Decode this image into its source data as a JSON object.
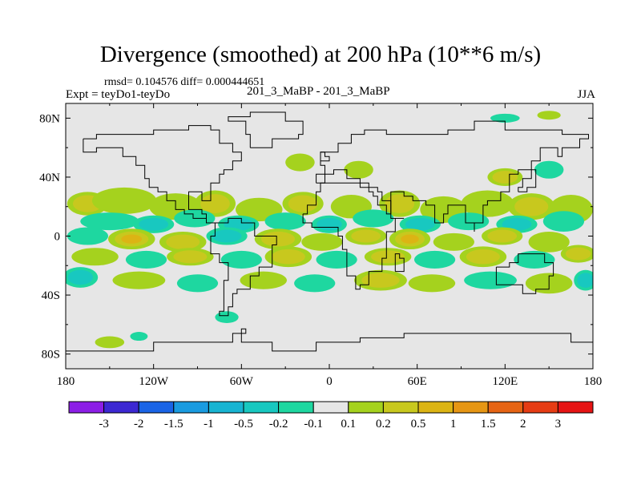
{
  "chart_data": {
    "type": "contour-map",
    "title": "Divergence (smoothed) at 200 hPa (10**6 m/s)",
    "subtitle_left_top": "rmsd= 0.104576 diff= 0.000444651",
    "subtitle_left": "Expt = teyDo1-teyDo",
    "subtitle_center": "201_3_MaBP - 201_3_MaBP",
    "subtitle_right": "JJA",
    "x_axis": {
      "range": [
        -180,
        180
      ],
      "ticks": [
        {
          "value": -180,
          "label": "180"
        },
        {
          "value": -120,
          "label": "120W"
        },
        {
          "value": -60,
          "label": "60W"
        },
        {
          "value": 0,
          "label": "0"
        },
        {
          "value": 60,
          "label": "60E"
        },
        {
          "value": 120,
          "label": "120E"
        },
        {
          "value": 180,
          "label": "180"
        }
      ]
    },
    "y_axis": {
      "range": [
        -90,
        90
      ],
      "ticks": [
        {
          "value": 80,
          "label": "80N"
        },
        {
          "value": 40,
          "label": "40N"
        },
        {
          "value": 0,
          "label": "0"
        },
        {
          "value": -40,
          "label": "40S"
        },
        {
          "value": -80,
          "label": "80S"
        }
      ]
    },
    "colorbar": {
      "colors": [
        "#8c1ee6",
        "#3c28d2",
        "#1a64e6",
        "#1a9be0",
        "#18b4d2",
        "#18c8c0",
        "#1ed7a0",
        "#e6e6e6",
        "#a5d21e",
        "#c8c81e",
        "#dcb414",
        "#e69614",
        "#e66414",
        "#e63c14",
        "#e61414"
      ],
      "labels": [
        "-3",
        "-2",
        "-1.5",
        "-1",
        "-0.5",
        "-0.2",
        "-0.1",
        "0.1",
        "0.2",
        "0.5",
        "1",
        "1.5",
        "2",
        "3"
      ]
    },
    "regions": [
      {
        "lon": -165,
        "lat": 22,
        "w": 14,
        "h": 8,
        "level": 2
      },
      {
        "lon": -140,
        "lat": 24,
        "w": 22,
        "h": 9,
        "level": 1
      },
      {
        "lon": -105,
        "lat": 20,
        "w": 18,
        "h": 9,
        "level": 1
      },
      {
        "lon": -78,
        "lat": 22,
        "w": 14,
        "h": 9,
        "level": 2
      },
      {
        "lon": -48,
        "lat": 18,
        "w": 16,
        "h": 8,
        "level": 1
      },
      {
        "lon": -18,
        "lat": 22,
        "w": 14,
        "h": 8,
        "level": 2
      },
      {
        "lon": 15,
        "lat": 20,
        "w": 14,
        "h": 8,
        "level": 1
      },
      {
        "lon": 48,
        "lat": 22,
        "w": 14,
        "h": 9,
        "level": 2
      },
      {
        "lon": 78,
        "lat": 18,
        "w": 16,
        "h": 9,
        "level": 1
      },
      {
        "lon": 108,
        "lat": 22,
        "w": 18,
        "h": 9,
        "level": 1
      },
      {
        "lon": 138,
        "lat": 20,
        "w": 16,
        "h": 9,
        "level": 2
      },
      {
        "lon": 165,
        "lat": 18,
        "w": 15,
        "h": 10,
        "level": 1
      },
      {
        "lon": -150,
        "lat": 10,
        "w": 20,
        "h": 6,
        "level": -1
      },
      {
        "lon": -120,
        "lat": 8,
        "w": 14,
        "h": 6,
        "level": -2
      },
      {
        "lon": -92,
        "lat": 12,
        "w": 14,
        "h": 6,
        "level": -1
      },
      {
        "lon": -62,
        "lat": 8,
        "w": 14,
        "h": 6,
        "level": -2
      },
      {
        "lon": -30,
        "lat": 10,
        "w": 14,
        "h": 6,
        "level": -1
      },
      {
        "lon": 0,
        "lat": 8,
        "w": 12,
        "h": 6,
        "level": -2
      },
      {
        "lon": 30,
        "lat": 12,
        "w": 14,
        "h": 6,
        "level": -1
      },
      {
        "lon": 62,
        "lat": 8,
        "w": 14,
        "h": 6,
        "level": -2
      },
      {
        "lon": 95,
        "lat": 10,
        "w": 14,
        "h": 6,
        "level": -1
      },
      {
        "lon": 128,
        "lat": 8,
        "w": 14,
        "h": 6,
        "level": -2
      },
      {
        "lon": 160,
        "lat": 10,
        "w": 14,
        "h": 7,
        "level": -1
      },
      {
        "lon": -165,
        "lat": 0,
        "w": 14,
        "h": 6,
        "level": -1
      },
      {
        "lon": -135,
        "lat": -2,
        "w": 16,
        "h": 7,
        "level": 3
      },
      {
        "lon": -100,
        "lat": -4,
        "w": 16,
        "h": 7,
        "level": 2
      },
      {
        "lon": -70,
        "lat": 0,
        "w": 14,
        "h": 6,
        "level": -2
      },
      {
        "lon": -35,
        "lat": -2,
        "w": 16,
        "h": 7,
        "level": 2
      },
      {
        "lon": -5,
        "lat": -4,
        "w": 14,
        "h": 6,
        "level": 1
      },
      {
        "lon": 25,
        "lat": 0,
        "w": 14,
        "h": 6,
        "level": 2
      },
      {
        "lon": 55,
        "lat": -2,
        "w": 14,
        "h": 7,
        "level": 3
      },
      {
        "lon": 85,
        "lat": -4,
        "w": 14,
        "h": 6,
        "level": 1
      },
      {
        "lon": 118,
        "lat": 0,
        "w": 14,
        "h": 6,
        "level": 2
      },
      {
        "lon": 150,
        "lat": -4,
        "w": 14,
        "h": 7,
        "level": 1
      },
      {
        "lon": -160,
        "lat": -14,
        "w": 16,
        "h": 6,
        "level": 1
      },
      {
        "lon": -125,
        "lat": -16,
        "w": 14,
        "h": 6,
        "level": -1
      },
      {
        "lon": -95,
        "lat": -14,
        "w": 16,
        "h": 6,
        "level": 2
      },
      {
        "lon": -60,
        "lat": -16,
        "w": 14,
        "h": 6,
        "level": -1
      },
      {
        "lon": -28,
        "lat": -14,
        "w": 16,
        "h": 7,
        "level": 2
      },
      {
        "lon": 5,
        "lat": -16,
        "w": 14,
        "h": 6,
        "level": -1
      },
      {
        "lon": 40,
        "lat": -14,
        "w": 16,
        "h": 6,
        "level": 2
      },
      {
        "lon": 72,
        "lat": -16,
        "w": 14,
        "h": 6,
        "level": -1
      },
      {
        "lon": 105,
        "lat": -14,
        "w": 16,
        "h": 7,
        "level": 2
      },
      {
        "lon": 140,
        "lat": -16,
        "w": 14,
        "h": 6,
        "level": -1
      },
      {
        "lon": 170,
        "lat": -12,
        "w": 12,
        "h": 6,
        "level": 2
      },
      {
        "lon": -170,
        "lat": -28,
        "w": 12,
        "h": 7,
        "level": -2
      },
      {
        "lon": -130,
        "lat": -30,
        "w": 18,
        "h": 6,
        "level": 1
      },
      {
        "lon": -90,
        "lat": -32,
        "w": 14,
        "h": 6,
        "level": -1
      },
      {
        "lon": -45,
        "lat": -30,
        "w": 16,
        "h": 6,
        "level": 1
      },
      {
        "lon": -10,
        "lat": -32,
        "w": 14,
        "h": 6,
        "level": -1
      },
      {
        "lon": 35,
        "lat": -30,
        "w": 18,
        "h": 7,
        "level": 2
      },
      {
        "lon": 70,
        "lat": -32,
        "w": 16,
        "h": 6,
        "level": 1
      },
      {
        "lon": 110,
        "lat": -30,
        "w": 18,
        "h": 6,
        "level": -1
      },
      {
        "lon": 150,
        "lat": -32,
        "w": 16,
        "h": 7,
        "level": 1
      },
      {
        "lon": 175,
        "lat": -30,
        "w": 8,
        "h": 7,
        "level": -2
      },
      {
        "lon": -20,
        "lat": 50,
        "w": 10,
        "h": 6,
        "level": 1
      },
      {
        "lon": 20,
        "lat": 45,
        "w": 10,
        "h": 6,
        "level": 1
      },
      {
        "lon": 120,
        "lat": 40,
        "w": 12,
        "h": 6,
        "level": 2
      },
      {
        "lon": 150,
        "lat": 45,
        "w": 10,
        "h": 6,
        "level": -1
      },
      {
        "lon": 120,
        "lat": 80,
        "w": 10,
        "h": 3,
        "level": -1
      },
      {
        "lon": 150,
        "lat": 82,
        "w": 8,
        "h": 3,
        "level": 1
      },
      {
        "lon": -150,
        "lat": -72,
        "w": 10,
        "h": 4,
        "level": 1
      },
      {
        "lon": -130,
        "lat": -68,
        "w": 6,
        "h": 3,
        "level": -1
      },
      {
        "lon": -70,
        "lat": -55,
        "w": 8,
        "h": 4,
        "level": -1
      }
    ]
  }
}
